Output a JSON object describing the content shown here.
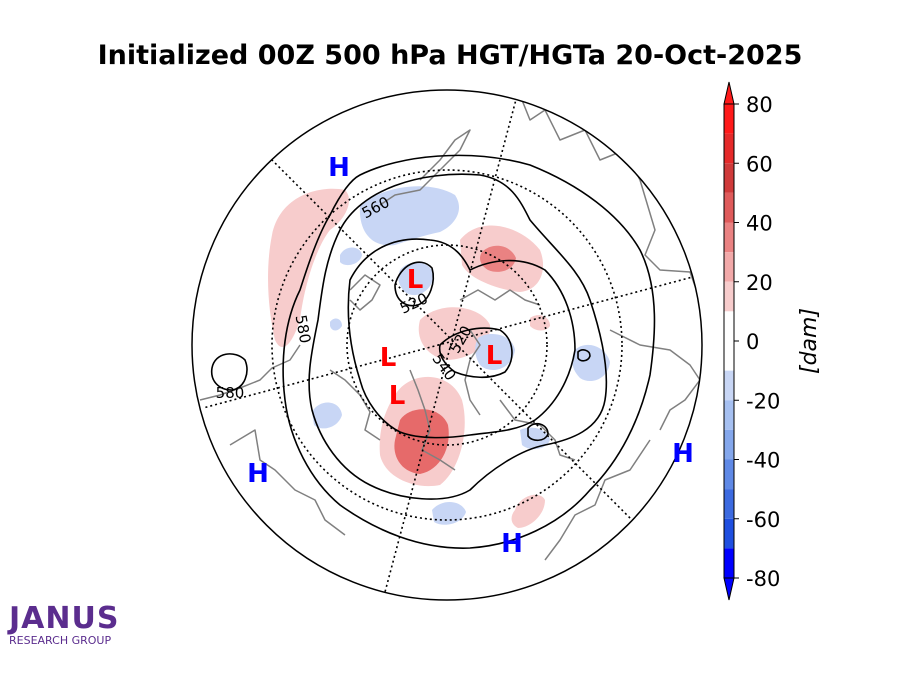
{
  "title": "Initialized 00Z 500 hPa HGT/HGTa 20-Oct-2025",
  "colorbar": {
    "unit_label": "[dam]",
    "ticks": [
      "80",
      "60",
      "40",
      "20",
      "0",
      "-20",
      "-40",
      "-60",
      "-80"
    ],
    "levels": [
      {
        "range": [
          70,
          80
        ],
        "color": "#ff1a1a"
      },
      {
        "range": [
          60,
          70
        ],
        "color": "#e52a2a"
      },
      {
        "range": [
          50,
          60
        ],
        "color": "#cf3a3a"
      },
      {
        "range": [
          40,
          50
        ],
        "color": "#df5b5b"
      },
      {
        "range": [
          30,
          40
        ],
        "color": "#ea8282"
      },
      {
        "range": [
          20,
          30
        ],
        "color": "#f2a9a9"
      },
      {
        "range": [
          10,
          20
        ],
        "color": "#f7cccc"
      },
      {
        "range": [
          0,
          10
        ],
        "color": "#ffffff"
      },
      {
        "range": [
          -10,
          0
        ],
        "color": "#ffffff"
      },
      {
        "range": [
          -20,
          -10
        ],
        "color": "#c8d6f5"
      },
      {
        "range": [
          -30,
          -20
        ],
        "color": "#a6c0f1"
      },
      {
        "range": [
          -40,
          -30
        ],
        "color": "#84a7ec"
      },
      {
        "range": [
          -50,
          -40
        ],
        "color": "#5f89e6"
      },
      {
        "range": [
          -60,
          -50
        ],
        "color": "#3c6ae0"
      },
      {
        "range": [
          -70,
          -60
        ],
        "color": "#1f4fe0"
      },
      {
        "range": [
          -80,
          -70
        ],
        "color": "#0000ff"
      }
    ],
    "extend": "both"
  },
  "contour_labels": [
    "560",
    "520",
    "580",
    "520",
    "540",
    "580"
  ],
  "pressure_centers": {
    "high": [
      "H",
      "H",
      "H",
      "H"
    ],
    "low": [
      "L",
      "L",
      "L",
      "L"
    ]
  },
  "colors": {
    "high_label": "#0000ff",
    "low_label": "#ff0000",
    "coastline": "#808080",
    "contour": "#000000",
    "positive_anomaly": "#f7cccc",
    "strong_positive_anomaly": "#e66a6a",
    "negative_anomaly": "#c8d6f5"
  },
  "logo": {
    "name": "JANUS",
    "subtitle": "RESEARCH GROUP"
  }
}
